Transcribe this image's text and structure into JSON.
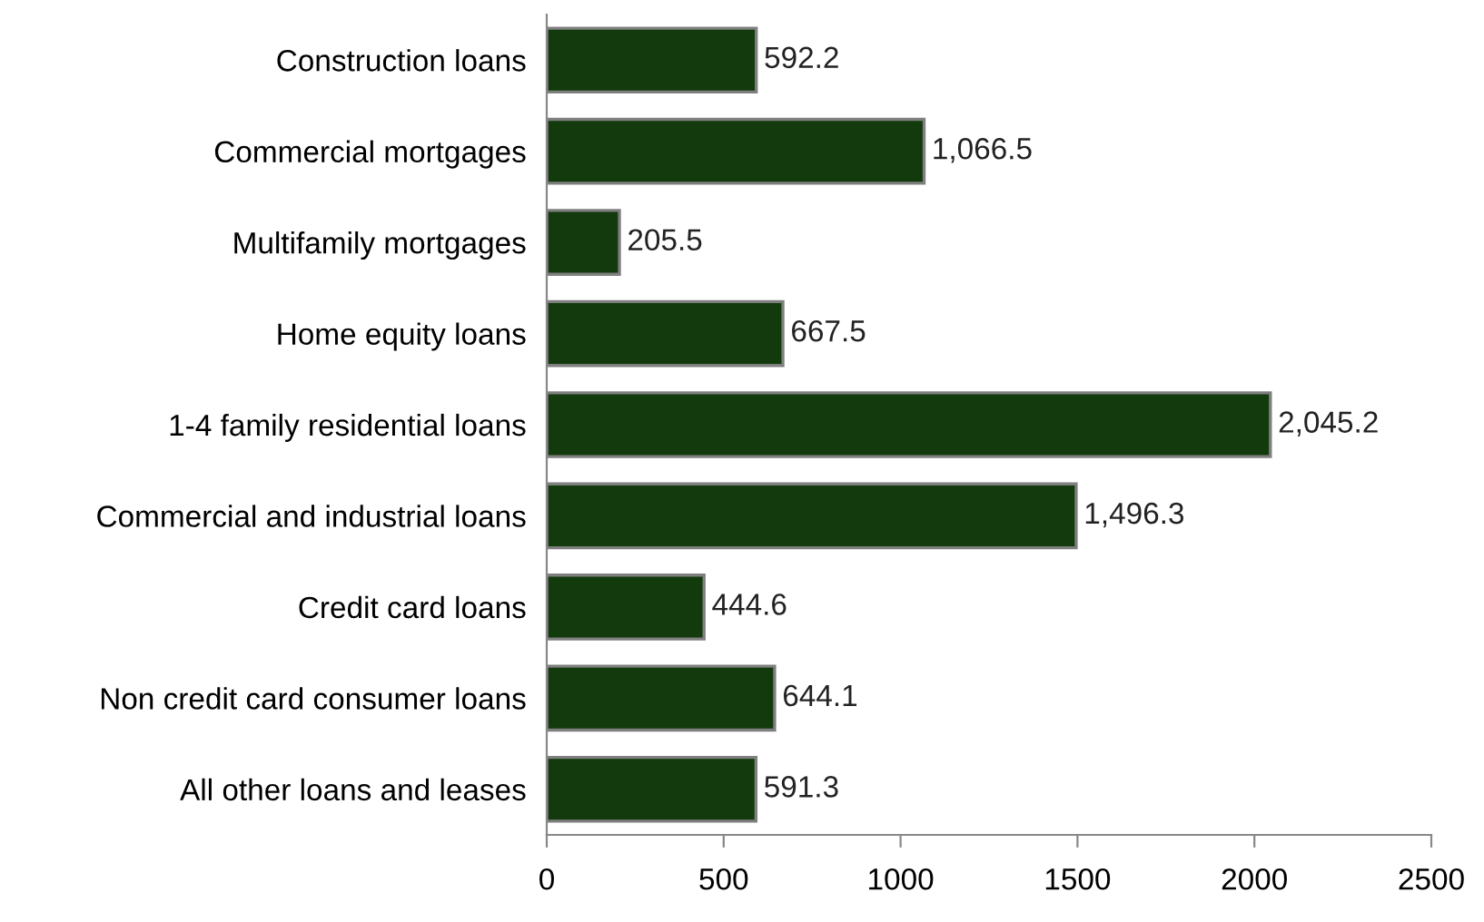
{
  "chart_data": {
    "type": "bar",
    "orientation": "horizontal",
    "categories": [
      "Construction loans",
      "Commercial mortgages",
      "Multifamily mortgages",
      "Home equity loans",
      "1-4 family residential loans",
      "Commercial and industrial loans",
      "Credit card loans",
      "Non credit card consumer loans",
      "All other loans and leases"
    ],
    "values": [
      592.2,
      1066.5,
      205.5,
      667.5,
      2045.2,
      1496.3,
      444.6,
      644.1,
      591.3
    ],
    "value_labels": [
      "592.2",
      "1,066.5",
      "205.5",
      "667.5",
      "2,045.2",
      "1,496.3",
      "444.6",
      "644.1",
      "591.3"
    ],
    "color": "#123a0c",
    "xlim": [
      0,
      2500
    ],
    "xticks": [
      0,
      500,
      1000,
      1500,
      2000,
      2500
    ],
    "grid": false,
    "legend": false
  }
}
